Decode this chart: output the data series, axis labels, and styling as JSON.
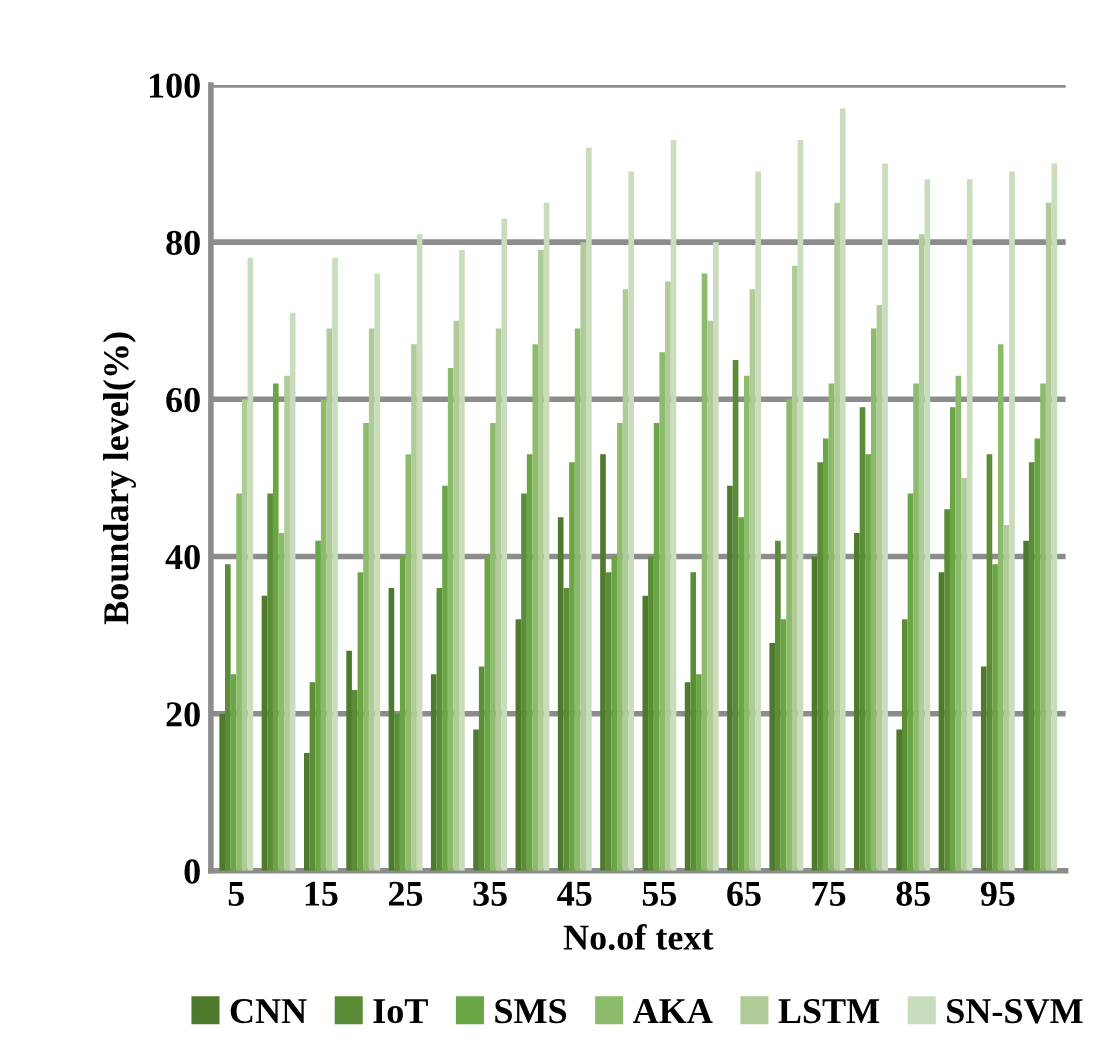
{
  "chart_data": {
    "type": "bar",
    "xlabel": "No.of text",
    "ylabel": "Boundary level(%)",
    "categories": [
      "5",
      null,
      "15",
      null,
      "25",
      null,
      "35",
      null,
      "45",
      null,
      "55",
      null,
      "65",
      null,
      "75",
      null,
      "85",
      null,
      "95",
      null
    ],
    "ylim": [
      0,
      100
    ],
    "yticks": [
      0,
      20,
      40,
      60,
      80,
      100
    ],
    "grid": "y",
    "legend": "bottom",
    "series": [
      {
        "name": "CNN",
        "color": "#4e7a2e",
        "values": [
          20,
          35,
          15,
          28,
          36,
          25,
          18,
          32,
          45,
          53,
          35,
          24,
          49,
          29,
          40,
          43,
          18,
          38,
          26,
          42
        ]
      },
      {
        "name": "IoT",
        "color": "#5a8d35",
        "values": [
          39,
          48,
          24,
          23,
          20,
          36,
          26,
          48,
          36,
          38,
          40,
          38,
          65,
          42,
          52,
          59,
          32,
          46,
          53,
          52
        ]
      },
      {
        "name": "SMS",
        "color": "#6aa644",
        "values": [
          25,
          62,
          42,
          38,
          40,
          49,
          40,
          53,
          52,
          40,
          57,
          25,
          45,
          32,
          55,
          53,
          48,
          59,
          39,
          55
        ]
      },
      {
        "name": "AKA",
        "color": "#8cbb6b",
        "values": [
          48,
          43,
          60,
          57,
          53,
          64,
          57,
          67,
          69,
          57,
          66,
          76,
          63,
          60,
          62,
          69,
          62,
          63,
          67,
          62
        ]
      },
      {
        "name": "LSTM",
        "color": "#aecb98",
        "values": [
          60,
          63,
          69,
          69,
          67,
          70,
          69,
          79,
          80,
          74,
          75,
          70,
          74,
          77,
          85,
          72,
          81,
          50,
          44,
          85
        ]
      },
      {
        "name": "SN-SVM",
        "color": "#c9dcbc",
        "values": [
          78,
          71,
          78,
          76,
          81,
          79,
          83,
          85,
          92,
          89,
          93,
          80,
          89,
          93,
          97,
          90,
          88,
          88,
          89,
          90
        ]
      }
    ]
  }
}
